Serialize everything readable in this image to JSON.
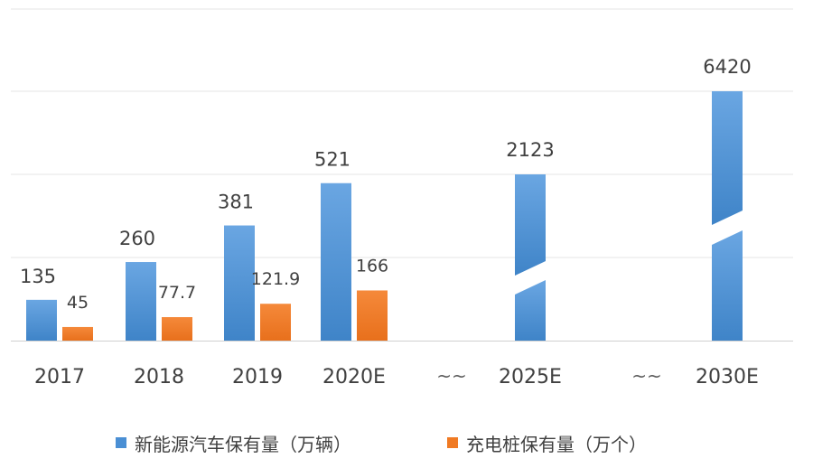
{
  "chart_data": {
    "type": "bar",
    "title": "",
    "xlabel": "",
    "ylabel": "",
    "grid": true,
    "legend_position": "bottom",
    "axis_break_marker": "~~",
    "broken_bars": [
      "2025E",
      "2030E"
    ],
    "categories": [
      "2017",
      "2018",
      "2019",
      "2020E",
      "2025E",
      "2030E"
    ],
    "series": [
      {
        "name": "新能源汽车保有量（万辆）",
        "color": "#4a8fd4",
        "values": [
          135,
          260,
          381,
          521,
          2123,
          6420
        ],
        "labels": [
          "135",
          "260",
          "381",
          "521",
          "2123",
          "6420"
        ]
      },
      {
        "name": "充电桩保有量（万个）",
        "color": "#f07a23",
        "values": [
          45,
          77.7,
          121.9,
          166,
          null,
          null
        ],
        "labels": [
          "45",
          "77.7",
          "121.9",
          "166",
          "",
          ""
        ]
      }
    ]
  }
}
